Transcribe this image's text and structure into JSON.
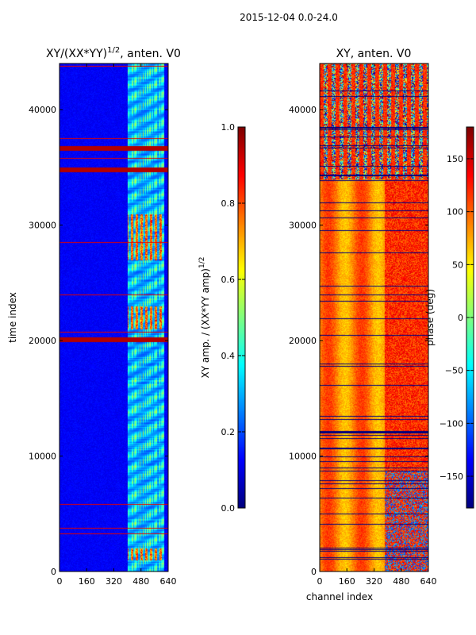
{
  "figure": {
    "suptitle": "2015-12-04 0.0-24.0"
  },
  "chart_data": [
    {
      "type": "heatmap",
      "title_prefix": "XY/(XX*YY)",
      "title_exponent": "1/2",
      "title_suffix": ", anten. V0",
      "xlabel": "",
      "ylabel": "time index",
      "xlim": [
        0,
        640
      ],
      "ylim": [
        0,
        44000
      ],
      "xticks": [
        0,
        160,
        320,
        480,
        640
      ],
      "yticks": [
        0,
        10000,
        20000,
        30000,
        40000
      ],
      "colorbar": {
        "label": "XY amp. / (XX*YY amp)",
        "label_exponent": "1/2",
        "range": [
          0.0,
          1.0
        ],
        "ticks": [
          "0.0",
          "0.2",
          "0.4",
          "0.6",
          "0.8",
          "1.0"
        ],
        "tick_values": [
          0.0,
          0.2,
          0.4,
          0.6,
          0.8,
          1.0
        ]
      },
      "colormap": "jet",
      "features": {
        "background_value": 0.12,
        "active_band_channels": [
          400,
          640
        ],
        "active_band_value": 0.45,
        "high_rows_time_index": [
          36700,
          34800,
          20100
        ],
        "bright_region_time_index": [
          [
            1000,
            2000
          ],
          [
            21000,
            23000
          ],
          [
            27000,
            31000
          ]
        ]
      }
    },
    {
      "type": "heatmap",
      "title": "XY, anten. V0",
      "xlabel": "channel index",
      "ylabel": "",
      "xlim": [
        0,
        640
      ],
      "ylim": [
        0,
        44000
      ],
      "xticks": [
        0,
        160,
        320,
        480,
        640
      ],
      "yticks": [
        0,
        10000,
        20000,
        30000,
        40000
      ],
      "colorbar": {
        "label": "phase (deg)",
        "range": [
          -180,
          180
        ],
        "ticks": [
          "−150",
          "−100",
          "−50",
          "0",
          "50",
          "100",
          "150"
        ],
        "tick_values": [
          -150,
          -100,
          -50,
          0,
          50,
          100,
          150
        ]
      },
      "colormap": "jet",
      "features": {
        "low_region_channels": [
          0,
          380
        ],
        "low_region_time_index": [
          0,
          34000
        ],
        "low_region_phase": 90,
        "noisy_region_time_index": [
          34000,
          44000
        ],
        "high_channel_region": [
          380,
          640
        ],
        "high_channel_phase": 120
      }
    }
  ]
}
